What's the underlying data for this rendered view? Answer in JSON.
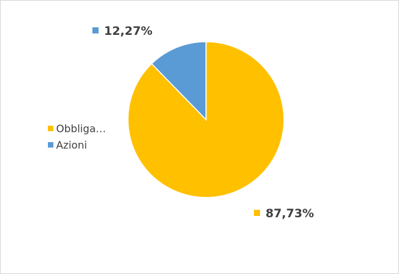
{
  "chart_data": {
    "type": "pie",
    "categories": [
      "Obbliga…",
      "Azioni"
    ],
    "values": [
      87.73,
      12.27
    ],
    "value_labels": [
      "87,73%",
      "12,27%"
    ],
    "colors": [
      "#FFC000",
      "#5B9BD5"
    ]
  }
}
